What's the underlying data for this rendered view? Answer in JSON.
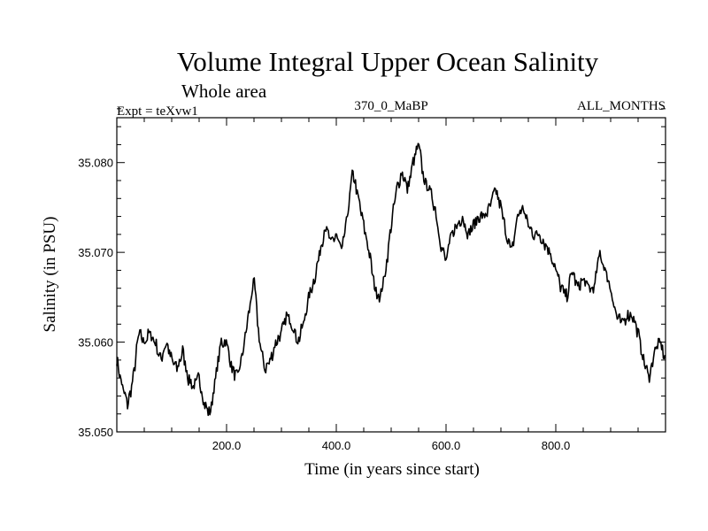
{
  "chart_data": {
    "type": "line",
    "title": "Volume Integral Upper Ocean Salinity",
    "subtitle": "Whole area",
    "expt_label": "Expt = teXvw1",
    "run_label": "370_0_MaBP",
    "months_label": "ALL_MONTHS",
    "xlabel": "Time (in years since start)",
    "ylabel": "Salinity (in PSU)",
    "xlim": [
      0,
      1000
    ],
    "ylim": [
      35.05,
      35.085
    ],
    "x_ticks": [
      200,
      400,
      600,
      800
    ],
    "x_tick_labels": [
      "200.0",
      "400.0",
      "600.0",
      "800.0"
    ],
    "y_ticks": [
      35.05,
      35.06,
      35.07,
      35.08
    ],
    "y_tick_labels": [
      "35.050",
      "35.060",
      "35.070",
      "35.080"
    ],
    "line_color": "#000000",
    "series": [
      {
        "name": "Salinity",
        "x": [
          0,
          10,
          20,
          30,
          40,
          50,
          60,
          70,
          80,
          90,
          100,
          110,
          120,
          130,
          140,
          150,
          160,
          170,
          180,
          190,
          200,
          210,
          220,
          230,
          240,
          250,
          260,
          270,
          280,
          290,
          300,
          310,
          320,
          330,
          340,
          350,
          360,
          370,
          380,
          390,
          400,
          410,
          420,
          430,
          440,
          450,
          460,
          470,
          480,
          490,
          500,
          510,
          520,
          530,
          540,
          550,
          560,
          570,
          580,
          590,
          600,
          610,
          620,
          630,
          640,
          650,
          660,
          670,
          680,
          690,
          700,
          710,
          720,
          730,
          740,
          750,
          760,
          770,
          780,
          790,
          800,
          810,
          820,
          830,
          840,
          850,
          860,
          870,
          880,
          890,
          900,
          910,
          920,
          930,
          940,
          950,
          960,
          970,
          980,
          990,
          1000
        ],
        "values": [
          35.058,
          35.055,
          35.053,
          35.056,
          35.061,
          35.06,
          35.061,
          35.06,
          35.058,
          35.06,
          35.058,
          35.057,
          35.059,
          35.056,
          35.055,
          35.056,
          35.053,
          35.052,
          35.056,
          35.06,
          35.06,
          35.057,
          35.056,
          35.059,
          35.063,
          35.067,
          35.06,
          35.057,
          35.058,
          35.06,
          35.061,
          35.063,
          35.062,
          35.06,
          35.062,
          35.065,
          35.067,
          35.07,
          35.073,
          35.071,
          35.072,
          35.07,
          35.074,
          35.079,
          35.076,
          35.073,
          35.07,
          35.066,
          35.065,
          35.068,
          35.073,
          35.077,
          35.079,
          35.077,
          35.08,
          35.082,
          35.078,
          35.077,
          35.075,
          35.071,
          35.069,
          35.072,
          35.073,
          35.074,
          35.072,
          35.073,
          35.074,
          35.074,
          35.075,
          35.077,
          35.075,
          35.072,
          35.07,
          35.074,
          35.075,
          35.073,
          35.072,
          35.072,
          35.071,
          35.07,
          35.068,
          35.066,
          35.065,
          35.068,
          35.066,
          35.067,
          35.066,
          35.066,
          35.07,
          35.068,
          35.066,
          35.063,
          35.062,
          35.063,
          35.063,
          35.061,
          35.058,
          35.056,
          35.059,
          35.06,
          35.058
        ]
      }
    ]
  }
}
